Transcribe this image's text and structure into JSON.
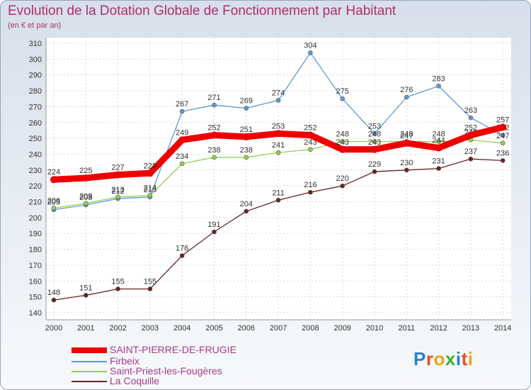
{
  "title": "Evolution de la Dotation Globale de Fonctionnement par Habitant",
  "subtitle": "(en € et par an)",
  "logo": {
    "letters": [
      "P",
      "r",
      "o",
      "x",
      "i",
      "t",
      "i"
    ],
    "colors": [
      "#2a7fd6",
      "#e84f1b",
      "#f0a020",
      "#3fae2e",
      "#2a7fd6",
      "#e84f1b",
      "#f0a020"
    ]
  },
  "chart_data": {
    "type": "line",
    "title": "Evolution de la Dotation Globale de Fonctionnement par Habitant",
    "ylabel": "(en € et par an)",
    "categories": [
      "2000",
      "2001",
      "2002",
      "2003",
      "2004",
      "2005",
      "2006",
      "2007",
      "2008",
      "2009",
      "2010",
      "2011",
      "2012",
      "2013",
      "2014"
    ],
    "ylim": [
      140,
      310
    ],
    "yticks": [
      140,
      150,
      160,
      170,
      180,
      190,
      200,
      210,
      220,
      230,
      240,
      250,
      260,
      270,
      280,
      290,
      300,
      310
    ],
    "series": [
      {
        "name": "SAINT-PIERRE-DE-FRUGIE",
        "color": "#ee0000",
        "values": [
          224,
          225,
          227,
          228,
          249,
          252,
          251,
          253,
          252,
          243,
          243,
          247,
          244,
          252,
          257
        ]
      },
      {
        "name": "Firbeix",
        "color": "#5b9bd5",
        "values": [
          205,
          208,
          212,
          213,
          267,
          271,
          269,
          274,
          304,
          275,
          253,
          276,
          283,
          263,
          252
        ]
      },
      {
        "name": "Saint-Priest-les-Fougères",
        "color": "#92d050",
        "values": [
          206,
          209,
          213,
          214,
          234,
          238,
          238,
          241,
          243,
          248,
          248,
          248,
          248,
          249,
          247
        ]
      },
      {
        "name": "La Coquille",
        "color": "#6b2222",
        "values": [
          148,
          151,
          155,
          155,
          176,
          191,
          204,
          211,
          216,
          220,
          229,
          230,
          231,
          237,
          236
        ]
      }
    ]
  }
}
